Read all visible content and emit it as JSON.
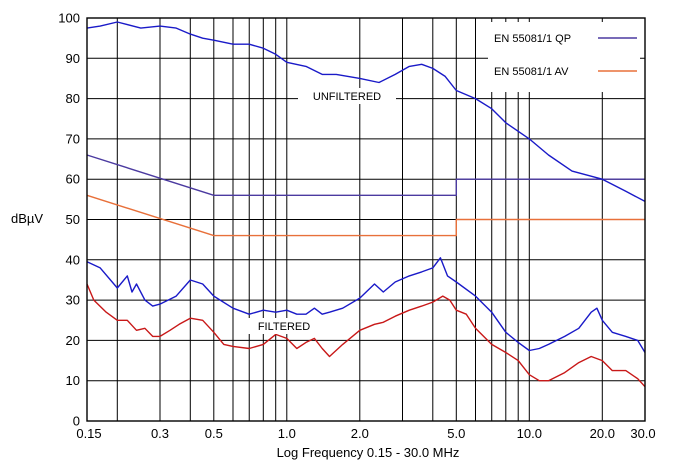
{
  "chart_data": {
    "type": "line",
    "xlabel": "Log Frequency 0.15 - 30.0 MHz",
    "ylabel": "dBµV",
    "x_scale": "log",
    "xlim": [
      0.15,
      30.0
    ],
    "ylim": [
      0,
      100
    ],
    "grid": true,
    "x_tick_labels": [
      "0.15",
      "0.3",
      "0.5",
      "1.0",
      "2.0",
      "5.0",
      "10.0",
      "20.0",
      "30.0"
    ],
    "x_tick_values": [
      0.15,
      0.3,
      0.5,
      1.0,
      2.0,
      5.0,
      10.0,
      20.0,
      30.0
    ],
    "y_tick_labels": [
      "0",
      "10",
      "20",
      "30",
      "40",
      "50",
      "60",
      "70",
      "80",
      "90",
      "100"
    ],
    "y_tick_values": [
      0,
      10,
      20,
      30,
      40,
      50,
      60,
      70,
      80,
      90,
      100
    ],
    "legend_position": "top-right",
    "series": [
      {
        "name": "EN 55081/1 QP",
        "color": "#4b3aa0",
        "x": [
          0.15,
          0.5,
          0.5,
          5.0,
          5.0,
          30.0
        ],
        "y": [
          66,
          56,
          56,
          56,
          60,
          60
        ]
      },
      {
        "name": "EN 55081/1 AV",
        "color": "#e8703a",
        "x": [
          0.15,
          0.5,
          0.5,
          5.0,
          5.0,
          30.0
        ],
        "y": [
          56,
          46,
          46,
          46,
          50,
          50
        ]
      },
      {
        "color": "#1a1ac8",
        "x": [
          0.15,
          0.17,
          0.2,
          0.25,
          0.3,
          0.35,
          0.4,
          0.45,
          0.5,
          0.6,
          0.7,
          0.8,
          0.9,
          1.0,
          1.2,
          1.4,
          1.6,
          2.0,
          2.4,
          2.8,
          3.2,
          3.6,
          4.0,
          4.5,
          5.0,
          6.0,
          7.0,
          8.0,
          10.0,
          12.0,
          15.0,
          20.0,
          25.0,
          30.0
        ],
        "y": [
          97.5,
          98,
          99,
          97.5,
          98,
          97.5,
          96,
          95,
          94.5,
          93.5,
          93.5,
          92.5,
          91,
          89,
          88,
          86,
          86,
          85,
          84,
          86,
          88,
          88.5,
          87.5,
          85.5,
          82,
          80,
          77.5,
          74,
          70,
          66,
          62,
          60,
          57,
          54.5
        ]
      },
      {
        "color": "#1a1ac8",
        "x": [
          0.15,
          0.17,
          0.2,
          0.22,
          0.23,
          0.24,
          0.26,
          0.28,
          0.3,
          0.35,
          0.4,
          0.45,
          0.5,
          0.6,
          0.7,
          0.8,
          0.9,
          1.0,
          1.1,
          1.2,
          1.3,
          1.4,
          1.5,
          1.7,
          2.0,
          2.3,
          2.5,
          2.8,
          3.2,
          3.6,
          4.0,
          4.3,
          4.6,
          5.0,
          6.0,
          7.0,
          8.0,
          9.0,
          10.0,
          11.0,
          12.0,
          14.0,
          16.0,
          18.0,
          19.0,
          20.0,
          22.0,
          25.0,
          28.0,
          30.0
        ],
        "y": [
          39.5,
          38,
          33,
          36,
          32,
          34,
          30,
          28.5,
          29,
          31,
          35,
          34,
          31,
          28,
          26.5,
          27.5,
          27,
          27.5,
          26.5,
          26.5,
          28,
          26.5,
          27,
          28,
          30.5,
          34,
          32,
          34.5,
          36,
          37,
          38,
          40.5,
          36,
          34.5,
          31,
          27,
          22,
          19.5,
          17.5,
          18,
          19,
          21,
          23,
          27,
          28,
          25,
          22,
          21,
          20,
          17
        ]
      },
      {
        "color": "#c81818",
        "x": [
          0.15,
          0.16,
          0.18,
          0.2,
          0.22,
          0.24,
          0.26,
          0.28,
          0.3,
          0.33,
          0.36,
          0.4,
          0.45,
          0.5,
          0.55,
          0.6,
          0.7,
          0.8,
          0.9,
          1.0,
          1.1,
          1.2,
          1.3,
          1.4,
          1.5,
          1.7,
          2.0,
          2.3,
          2.5,
          2.8,
          3.2,
          3.6,
          4.0,
          4.4,
          4.7,
          5.0,
          5.5,
          6.0,
          7.0,
          8.0,
          9.0,
          10.0,
          11.0,
          12.0,
          14.0,
          16.0,
          18.0,
          20.0,
          22.0,
          25.0,
          28.0,
          30.0
        ],
        "y": [
          34,
          30,
          27,
          25,
          25,
          22.5,
          23,
          21,
          21,
          22.5,
          24,
          25.5,
          25,
          22,
          19,
          18.5,
          18,
          19,
          21.5,
          20.5,
          18,
          19.5,
          20.5,
          18,
          16,
          19,
          22.5,
          24,
          24.5,
          26,
          27.5,
          28.5,
          29.5,
          31,
          30,
          27.5,
          26.5,
          23,
          19,
          17,
          15,
          11.5,
          10,
          10,
          12,
          14.5,
          16,
          15,
          12.5,
          12.5,
          10.5,
          8.5
        ]
      }
    ],
    "annotations": [
      "UNFILTERED",
      "FILTERED"
    ]
  }
}
